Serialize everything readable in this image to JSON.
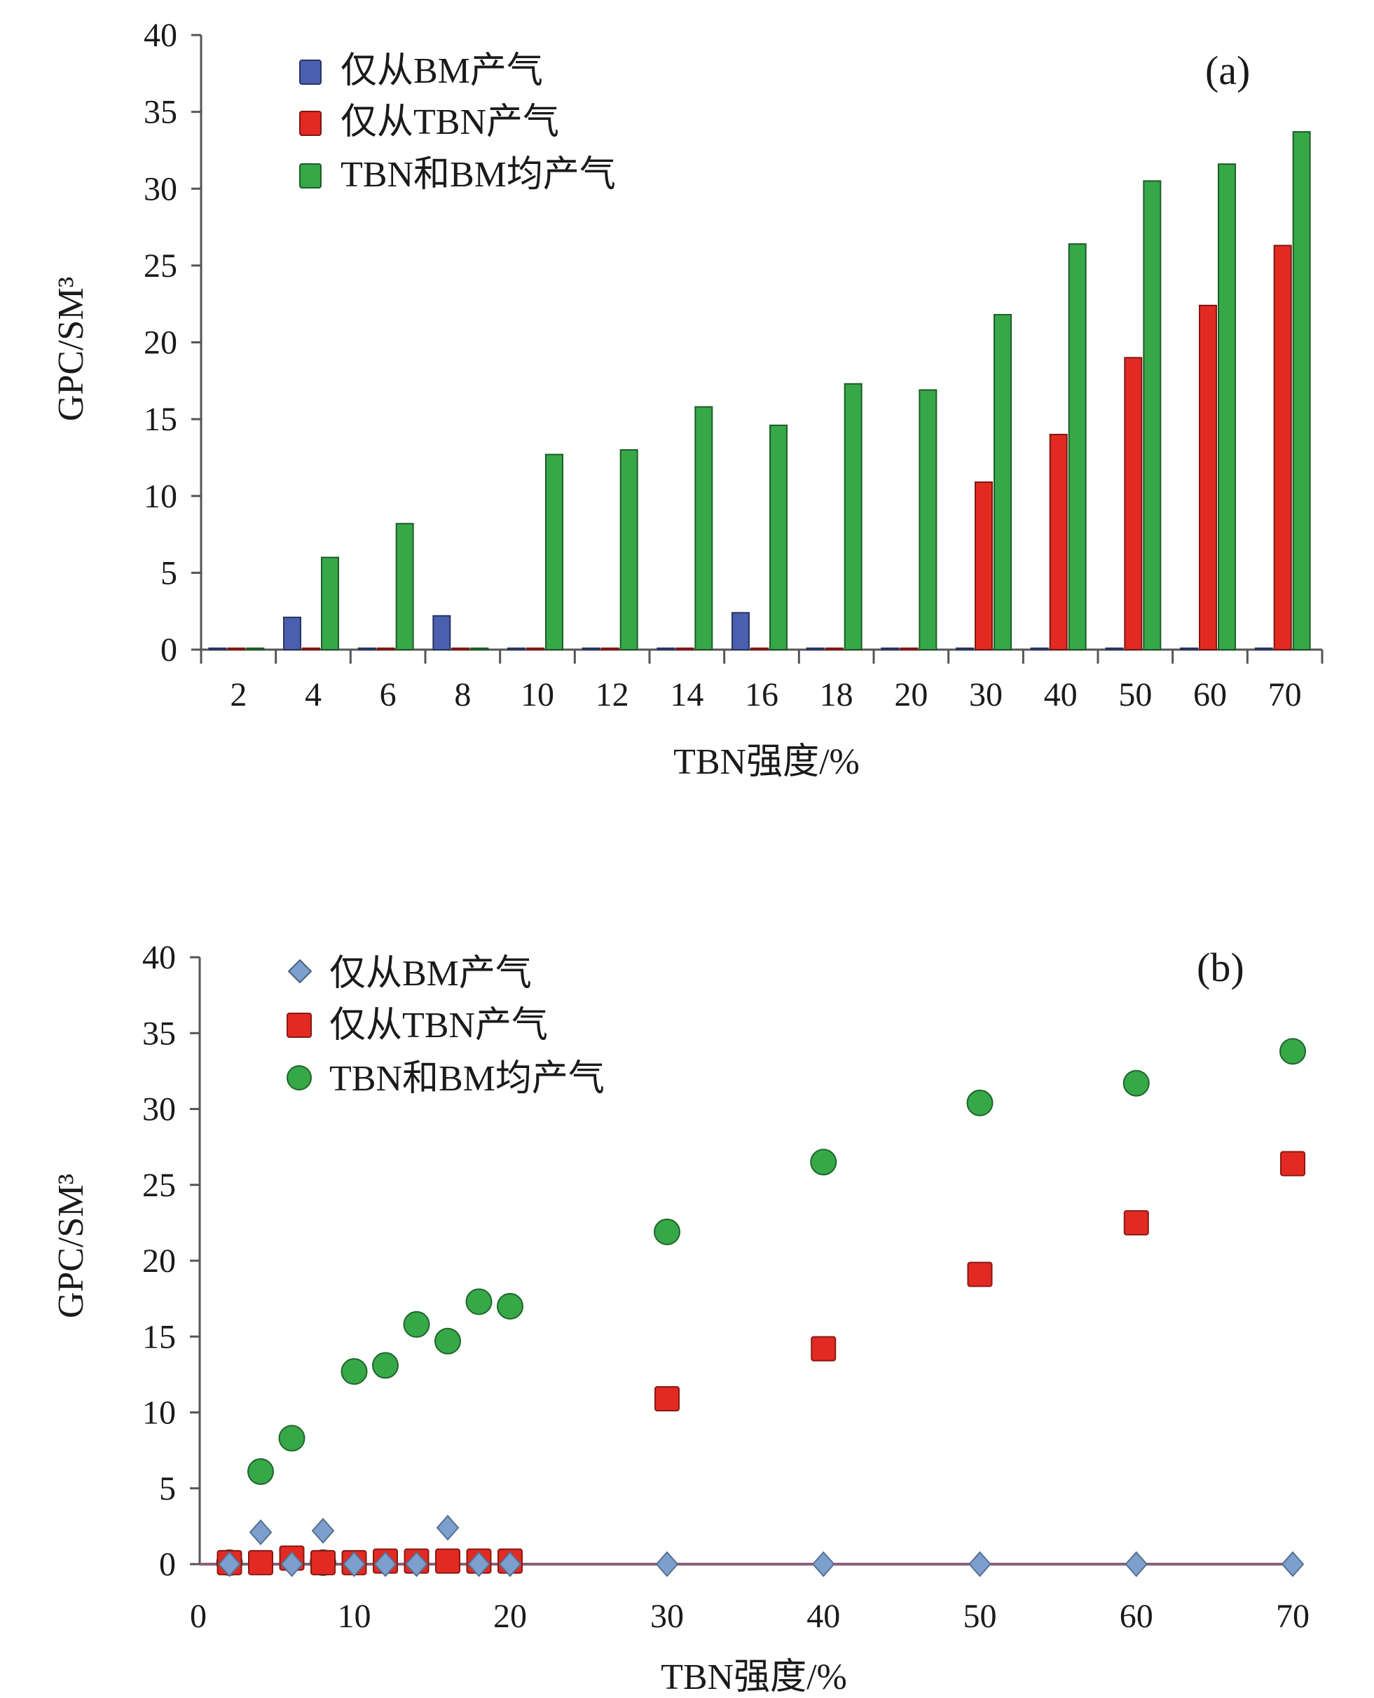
{
  "colors": {
    "bm_only": "#4a5fae",
    "tbn_only": "#e32a22",
    "both": "#36a848",
    "bm_only_marker": "#7d9fcd",
    "axis": "#555555"
  },
  "chart_data": [
    {
      "type": "bar",
      "panel_label": "(a)",
      "xlabel": "TBN强度/%",
      "ylabel": "GPC/SM³",
      "ylim": [
        0,
        40
      ],
      "yticks": [
        "0",
        "5",
        "10",
        "15",
        "20",
        "25",
        "30",
        "35",
        "40"
      ],
      "categories": [
        "2",
        "4",
        "6",
        "8",
        "10",
        "12",
        "14",
        "16",
        "18",
        "20",
        "30",
        "40",
        "50",
        "60",
        "70"
      ],
      "grid": false,
      "legend_position": "top-left",
      "series": [
        {
          "name": "仅从BM产气",
          "color": "#4a5fae",
          "values": [
            0,
            2.1,
            0,
            2.2,
            0,
            0,
            0,
            2.4,
            0,
            0,
            0,
            0,
            0,
            0,
            0
          ]
        },
        {
          "name": "仅从TBN产气",
          "color": "#e32a22",
          "values": [
            0,
            0,
            0,
            0,
            0,
            0,
            0,
            0,
            0,
            0,
            10.9,
            14.0,
            19.0,
            22.4,
            26.3
          ]
        },
        {
          "name": "TBN和BM均产气",
          "color": "#36a848",
          "values": [
            0,
            6.0,
            8.2,
            0,
            12.7,
            13.0,
            15.8,
            14.6,
            17.3,
            16.9,
            21.8,
            26.4,
            30.5,
            31.6,
            33.7
          ]
        }
      ]
    },
    {
      "type": "scatter",
      "panel_label": "(b)",
      "xlabel": "TBN强度/%",
      "ylabel": "GPC/SM³",
      "xlim": [
        0,
        70
      ],
      "ylim": [
        0,
        40
      ],
      "xticks": [
        "0",
        "10",
        "20",
        "30",
        "40",
        "50",
        "60",
        "70"
      ],
      "yticks": [
        "0",
        "5",
        "10",
        "15",
        "20",
        "25",
        "30",
        "35",
        "40"
      ],
      "grid": false,
      "legend_position": "top-left",
      "series": [
        {
          "name": "仅从BM产气",
          "marker": "diamond",
          "color": "#7d9fcd",
          "points": [
            [
              2,
              0
            ],
            [
              4,
              2.1
            ],
            [
              6,
              0
            ],
            [
              8,
              2.2
            ],
            [
              10,
              0
            ],
            [
              12,
              0
            ],
            [
              14,
              0
            ],
            [
              16,
              2.4
            ],
            [
              18,
              0
            ],
            [
              20,
              0
            ],
            [
              30,
              0
            ],
            [
              40,
              0
            ],
            [
              50,
              0
            ],
            [
              60,
              0
            ],
            [
              70,
              0
            ]
          ]
        },
        {
          "name": "仅从TBN产气",
          "marker": "square",
          "color": "#e32a22",
          "points": [
            [
              2,
              0.1
            ],
            [
              4,
              0.1
            ],
            [
              6,
              0.4
            ],
            [
              8,
              0.1
            ],
            [
              10,
              0.1
            ],
            [
              12,
              0.2
            ],
            [
              14,
              0.2
            ],
            [
              16,
              0.2
            ],
            [
              18,
              0.2
            ],
            [
              20,
              0.2
            ],
            [
              30,
              10.9
            ],
            [
              40,
              14.2
            ],
            [
              50,
              19.1
            ],
            [
              60,
              22.5
            ],
            [
              70,
              26.4
            ]
          ]
        },
        {
          "name": "TBN和BM均产气",
          "marker": "circle",
          "color": "#36a848",
          "points": [
            [
              2,
              0.1
            ],
            [
              4,
              6.1
            ],
            [
              6,
              8.3
            ],
            [
              8,
              0.1
            ],
            [
              10,
              12.7
            ],
            [
              12,
              13.1
            ],
            [
              14,
              15.8
            ],
            [
              16,
              14.7
            ],
            [
              18,
              17.3
            ],
            [
              20,
              17.0
            ],
            [
              30,
              21.9
            ],
            [
              40,
              26.5
            ],
            [
              50,
              30.4
            ],
            [
              60,
              31.7
            ],
            [
              70,
              33.8
            ]
          ]
        }
      ]
    }
  ]
}
